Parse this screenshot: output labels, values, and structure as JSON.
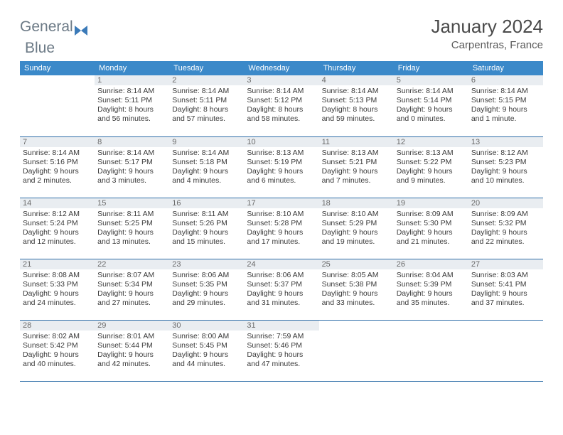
{
  "logo": {
    "word1": "General",
    "word2": "Blue"
  },
  "header": {
    "title": "January 2024",
    "location": "Carpentras, France"
  },
  "weekday_header_bg": "#3b89c9",
  "weekdays": [
    "Sunday",
    "Monday",
    "Tuesday",
    "Wednesday",
    "Thursday",
    "Friday",
    "Saturday"
  ],
  "first_weekday_index": 1,
  "days_in_month": 31,
  "days": {
    "1": {
      "sunrise": "8:14 AM",
      "sunset": "5:11 PM",
      "daylight": "8 hours and 56 minutes."
    },
    "2": {
      "sunrise": "8:14 AM",
      "sunset": "5:11 PM",
      "daylight": "8 hours and 57 minutes."
    },
    "3": {
      "sunrise": "8:14 AM",
      "sunset": "5:12 PM",
      "daylight": "8 hours and 58 minutes."
    },
    "4": {
      "sunrise": "8:14 AM",
      "sunset": "5:13 PM",
      "daylight": "8 hours and 59 minutes."
    },
    "5": {
      "sunrise": "8:14 AM",
      "sunset": "5:14 PM",
      "daylight": "9 hours and 0 minutes."
    },
    "6": {
      "sunrise": "8:14 AM",
      "sunset": "5:15 PM",
      "daylight": "9 hours and 1 minute."
    },
    "7": {
      "sunrise": "8:14 AM",
      "sunset": "5:16 PM",
      "daylight": "9 hours and 2 minutes."
    },
    "8": {
      "sunrise": "8:14 AM",
      "sunset": "5:17 PM",
      "daylight": "9 hours and 3 minutes."
    },
    "9": {
      "sunrise": "8:14 AM",
      "sunset": "5:18 PM",
      "daylight": "9 hours and 4 minutes."
    },
    "10": {
      "sunrise": "8:13 AM",
      "sunset": "5:19 PM",
      "daylight": "9 hours and 6 minutes."
    },
    "11": {
      "sunrise": "8:13 AM",
      "sunset": "5:21 PM",
      "daylight": "9 hours and 7 minutes."
    },
    "12": {
      "sunrise": "8:13 AM",
      "sunset": "5:22 PM",
      "daylight": "9 hours and 9 minutes."
    },
    "13": {
      "sunrise": "8:12 AM",
      "sunset": "5:23 PM",
      "daylight": "9 hours and 10 minutes."
    },
    "14": {
      "sunrise": "8:12 AM",
      "sunset": "5:24 PM",
      "daylight": "9 hours and 12 minutes."
    },
    "15": {
      "sunrise": "8:11 AM",
      "sunset": "5:25 PM",
      "daylight": "9 hours and 13 minutes."
    },
    "16": {
      "sunrise": "8:11 AM",
      "sunset": "5:26 PM",
      "daylight": "9 hours and 15 minutes."
    },
    "17": {
      "sunrise": "8:10 AM",
      "sunset": "5:28 PM",
      "daylight": "9 hours and 17 minutes."
    },
    "18": {
      "sunrise": "8:10 AM",
      "sunset": "5:29 PM",
      "daylight": "9 hours and 19 minutes."
    },
    "19": {
      "sunrise": "8:09 AM",
      "sunset": "5:30 PM",
      "daylight": "9 hours and 21 minutes."
    },
    "20": {
      "sunrise": "8:09 AM",
      "sunset": "5:32 PM",
      "daylight": "9 hours and 22 minutes."
    },
    "21": {
      "sunrise": "8:08 AM",
      "sunset": "5:33 PM",
      "daylight": "9 hours and 24 minutes."
    },
    "22": {
      "sunrise": "8:07 AM",
      "sunset": "5:34 PM",
      "daylight": "9 hours and 27 minutes."
    },
    "23": {
      "sunrise": "8:06 AM",
      "sunset": "5:35 PM",
      "daylight": "9 hours and 29 minutes."
    },
    "24": {
      "sunrise": "8:06 AM",
      "sunset": "5:37 PM",
      "daylight": "9 hours and 31 minutes."
    },
    "25": {
      "sunrise": "8:05 AM",
      "sunset": "5:38 PM",
      "daylight": "9 hours and 33 minutes."
    },
    "26": {
      "sunrise": "8:04 AM",
      "sunset": "5:39 PM",
      "daylight": "9 hours and 35 minutes."
    },
    "27": {
      "sunrise": "8:03 AM",
      "sunset": "5:41 PM",
      "daylight": "9 hours and 37 minutes."
    },
    "28": {
      "sunrise": "8:02 AM",
      "sunset": "5:42 PM",
      "daylight": "9 hours and 40 minutes."
    },
    "29": {
      "sunrise": "8:01 AM",
      "sunset": "5:44 PM",
      "daylight": "9 hours and 42 minutes."
    },
    "30": {
      "sunrise": "8:00 AM",
      "sunset": "5:45 PM",
      "daylight": "9 hours and 44 minutes."
    },
    "31": {
      "sunrise": "7:59 AM",
      "sunset": "5:46 PM",
      "daylight": "9 hours and 47 minutes."
    }
  },
  "labels": {
    "sunrise": "Sunrise: ",
    "sunset": "Sunset: ",
    "daylight": "Daylight: "
  }
}
